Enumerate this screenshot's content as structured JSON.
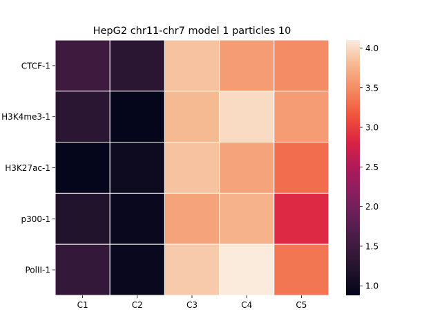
{
  "chart_data": {
    "type": "heatmap",
    "title": "HepG2 chr11-chr7 model 1 particles 10",
    "xlabel": "",
    "ylabel": "",
    "x_categories": [
      "C1",
      "C2",
      "C3",
      "C4",
      "C5"
    ],
    "y_categories": [
      "CTCF-1",
      "H3K4me3-1",
      "H3K27ac-1",
      "p300-1",
      "PolII-1"
    ],
    "values": [
      [
        1.5,
        1.3,
        3.85,
        3.6,
        3.5
      ],
      [
        1.3,
        0.9,
        3.8,
        4.0,
        3.6
      ],
      [
        0.9,
        1.0,
        3.85,
        3.65,
        3.3
      ],
      [
        1.2,
        0.95,
        3.65,
        3.75,
        2.85
      ],
      [
        1.4,
        0.95,
        3.9,
        4.1,
        3.35
      ]
    ],
    "colorbar": {
      "vmin": 0.88,
      "vmax": 4.1,
      "ticks": [
        1.0,
        1.5,
        2.0,
        2.5,
        3.0,
        3.5,
        4.0
      ],
      "tick_labels": [
        "1.0",
        "1.5",
        "2.0",
        "2.5",
        "3.0",
        "3.5",
        "4.0"
      ],
      "colormap": "rocket"
    },
    "grid": "white cell borders",
    "legend": "colorbar right"
  }
}
